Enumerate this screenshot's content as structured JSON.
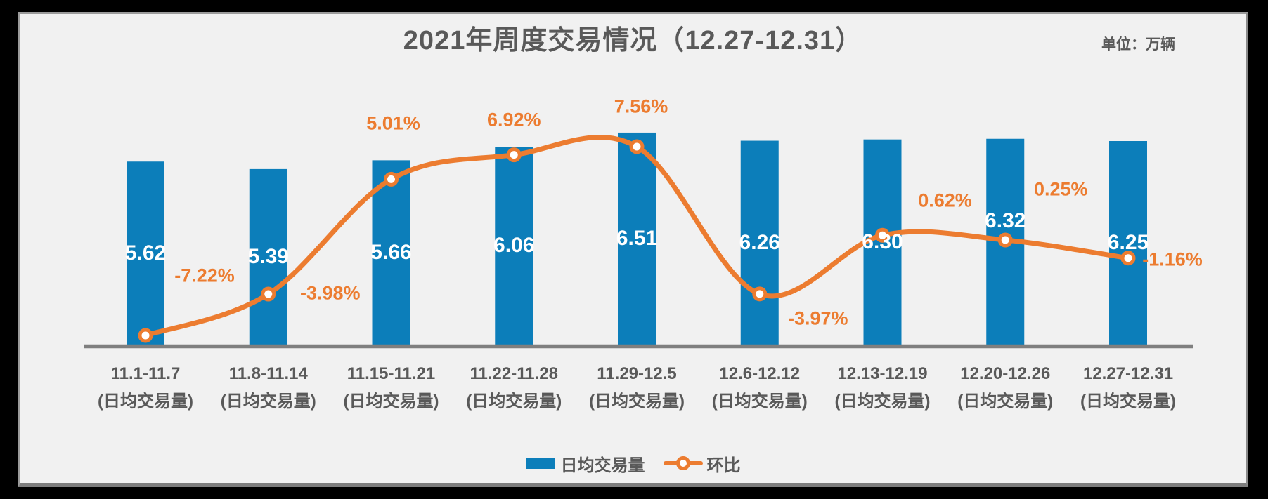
{
  "title": "2021年周度交易情况（12.27-12.31）",
  "unit_label": "单位：万辆",
  "legend": {
    "bar_label": "日均交易量",
    "line_label": "环比"
  },
  "colors": {
    "bar": "#0C7EBA",
    "line": "#EC7C30",
    "text": "#595959",
    "axis": "#7F7F7F",
    "panel_bg": "#F1F1F1",
    "frame": "#000000",
    "bar_value_text": "#FFFFFF"
  },
  "chart_data": {
    "type": "bar+line combo",
    "title": "2021年周度交易情况（12.27-12.31）",
    "unit": "万辆",
    "categories": [
      "11.1-11.7",
      "11.8-11.14",
      "11.15-11.21",
      "11.22-11.28",
      "11.29-12.5",
      "12.6-12.12",
      "12.13-12.19",
      "12.20-12.26",
      "12.27-12.31"
    ],
    "category_sublabel": "(日均交易量)",
    "series": [
      {
        "name": "日均交易量",
        "type": "bar",
        "values": [
          5.62,
          5.39,
          5.66,
          6.06,
          6.51,
          6.26,
          6.3,
          6.32,
          6.25
        ],
        "labels": [
          "5.62",
          "5.39",
          "5.66",
          "6.06",
          "6.51",
          "6.26",
          "6.30",
          "6.32",
          "6.25"
        ]
      },
      {
        "name": "环比",
        "type": "line",
        "unit": "%",
        "values": [
          -7.22,
          -3.98,
          5.01,
          6.92,
          7.56,
          -3.97,
          0.62,
          0.25,
          -1.16
        ],
        "labels": [
          "-7.22%",
          "-3.98%",
          "5.01%",
          "6.92%",
          "7.56%",
          "-3.97%",
          "0.62%",
          "0.25%",
          "-1.16%"
        ]
      }
    ],
    "legend_position": "bottom",
    "grid": false,
    "y_axis_visible": false,
    "line_style": "smooth",
    "marker": "circle-white-fill"
  }
}
